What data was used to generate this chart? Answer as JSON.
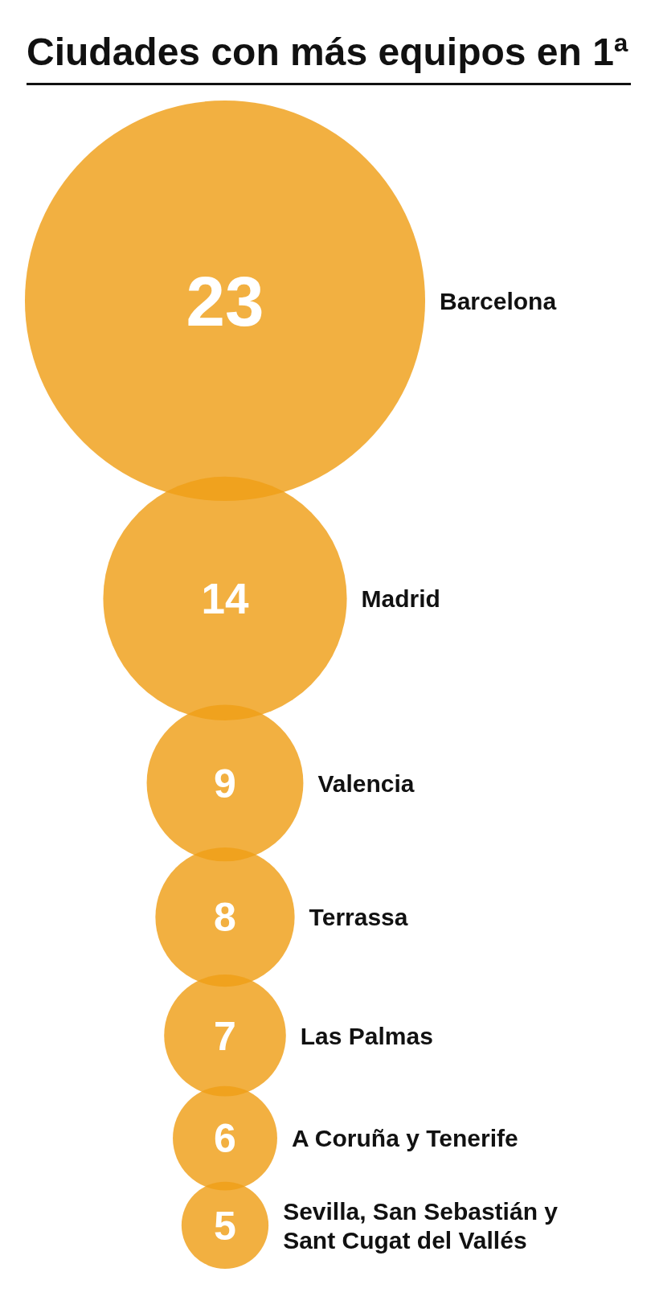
{
  "chart_data": {
    "type": "other",
    "title": "Ciudades con más equipos en 1ª",
    "categories": [
      "Barcelona",
      "Madrid",
      "Valencia",
      "Terrassa",
      "Las Palmas",
      "A Coruña y Tenerife",
      "Sevilla, San Sebastián y Sant Cugat del Vallés"
    ],
    "values": [
      23,
      14,
      9,
      8,
      7,
      6,
      5
    ],
    "color": "#f2b041",
    "data_labels": true
  }
}
